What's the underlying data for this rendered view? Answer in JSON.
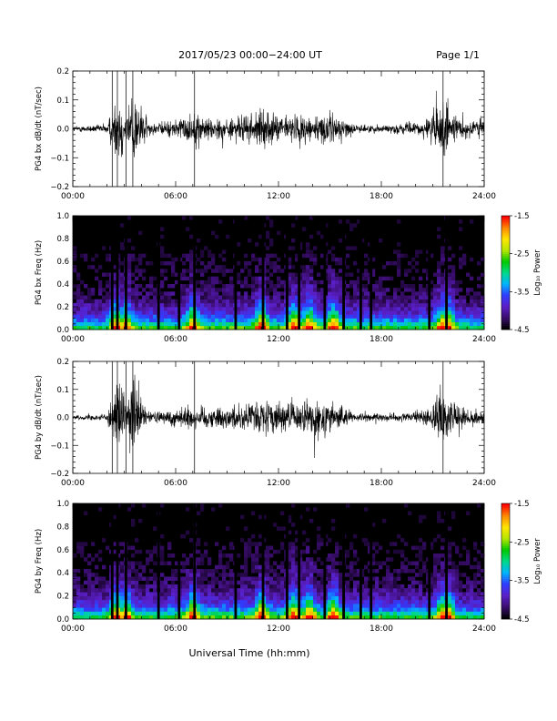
{
  "header": {
    "title": "2017/05/23  00:00−24:00 UT",
    "page": "Page 1/1"
  },
  "x_axis_title": "Universal Time (hh:mm)",
  "x_tick_labels": [
    "00:00",
    "06:00",
    "12:00",
    "18:00",
    "24:00"
  ],
  "colorbar": {
    "title": "Log₁₀ Power",
    "tick_labels": [
      "-1.5",
      "-2.5",
      "-3.5",
      "-4.5"
    ],
    "tick_values": [
      -1.5,
      -2.5,
      -3.5,
      -4.5
    ],
    "range": [
      -4.5,
      -1.5
    ],
    "colors": [
      "#000000",
      "#3a0d6e",
      "#5a1fc8",
      "#2f3cff",
      "#00b4ff",
      "#00d98a",
      "#00c800",
      "#b4e600",
      "#ffe600",
      "#ff8a00",
      "#ff0000"
    ]
  },
  "chart_data": [
    {
      "type": "line",
      "panel": "bx-waveform",
      "ylabel": "PG4 bx dB/dt (nT/sec)",
      "xlim": [
        0,
        24
      ],
      "ylim": [
        -0.2,
        0.2
      ],
      "y_tick_labels": [
        "0.2",
        "0.1",
        "0.0",
        "−0.1",
        "−0.2"
      ],
      "y_tick_values": [
        0.2,
        0.1,
        0.0,
        -0.1,
        -0.2
      ],
      "amplitude_envelope": {
        "x": [
          0,
          1.5,
          2.0,
          2.4,
          2.7,
          3.1,
          3.5,
          4.5,
          5.0,
          6.0,
          7.0,
          8.0,
          9.0,
          10.0,
          11.0,
          12.0,
          13.0,
          14.0,
          14.5,
          15.0,
          15.8,
          16.5,
          17.0,
          18.0,
          19.0,
          19.8,
          20.5,
          21.3,
          21.6,
          22.0,
          22.5,
          23.0,
          24.0
        ],
        "y": [
          0.015,
          0.02,
          0.03,
          0.12,
          0.2,
          0.08,
          0.2,
          0.03,
          0.03,
          0.05,
          0.08,
          0.06,
          0.05,
          0.07,
          0.09,
          0.07,
          0.07,
          0.08,
          0.06,
          0.09,
          0.05,
          0.02,
          0.02,
          0.02,
          0.025,
          0.03,
          0.04,
          0.12,
          0.2,
          0.07,
          0.05,
          0.06,
          0.05
        ]
      }
    },
    {
      "type": "heatmap",
      "panel": "bx-spectrogram",
      "ylabel": "PG4 bx Freq (Hz)",
      "xlim": [
        0,
        24
      ],
      "ylim": [
        0,
        1.0
      ],
      "y_tick_labels": [
        "1.0",
        "0.8",
        "0.6",
        "0.4",
        "0.2",
        "0.0"
      ],
      "y_tick_values": [
        1.0,
        0.8,
        0.6,
        0.4,
        0.2,
        0.0
      ],
      "gap_times_hr": [
        2.3,
        2.6,
        3.1,
        5.0,
        6.2,
        7.1,
        9.5,
        11.1,
        12.5,
        13.2,
        14.7,
        15.8,
        16.8,
        17.4,
        20.8,
        21.8
      ],
      "power_bursts_hr": [
        2.55,
        3.1,
        7.0,
        11.0,
        12.9,
        13.8,
        15.2,
        21.55,
        21.9
      ]
    },
    {
      "type": "line",
      "panel": "by-waveform",
      "ylabel": "PG4 by dB/dt (nT/sec)",
      "xlim": [
        0,
        24
      ],
      "ylim": [
        -0.2,
        0.2
      ],
      "y_tick_labels": [
        "0.2",
        "0.1",
        "0.0",
        "−0.1",
        "−0.2"
      ],
      "y_tick_values": [
        0.2,
        0.1,
        0.0,
        -0.1,
        -0.2
      ],
      "amplitude_envelope": {
        "x": [
          0,
          1.5,
          2.0,
          2.4,
          2.7,
          3.1,
          3.5,
          4.5,
          5.0,
          6.0,
          7.0,
          8.0,
          9.0,
          10.0,
          11.0,
          12.0,
          13.0,
          14.0,
          14.5,
          15.0,
          15.8,
          16.5,
          17.0,
          18.0,
          19.0,
          19.8,
          20.5,
          21.3,
          21.6,
          22.0,
          22.5,
          23.0,
          24.0
        ],
        "y": [
          0.01,
          0.015,
          0.025,
          0.11,
          0.2,
          0.07,
          0.2,
          0.025,
          0.03,
          0.05,
          0.07,
          0.05,
          0.06,
          0.07,
          0.09,
          0.08,
          0.07,
          0.1,
          0.08,
          0.1,
          0.05,
          0.02,
          0.02,
          0.02,
          0.02,
          0.025,
          0.04,
          0.1,
          0.18,
          0.1,
          0.05,
          0.05,
          0.04
        ]
      }
    },
    {
      "type": "heatmap",
      "panel": "by-spectrogram",
      "ylabel": "PG4 by Freq (Hz)",
      "xlim": [
        0,
        24
      ],
      "ylim": [
        0,
        1.0
      ],
      "y_tick_labels": [
        "1.0",
        "0.8",
        "0.6",
        "0.4",
        "0.2",
        "0.0"
      ],
      "y_tick_values": [
        1.0,
        0.8,
        0.6,
        0.4,
        0.2,
        0.0
      ],
      "gap_times_hr": [
        2.3,
        2.6,
        3.1,
        5.0,
        6.2,
        7.1,
        9.5,
        11.1,
        12.5,
        13.2,
        14.7,
        15.8,
        16.8,
        17.4,
        20.8,
        21.8
      ],
      "power_bursts_hr": [
        2.55,
        3.1,
        7.0,
        11.0,
        12.9,
        13.8,
        15.2,
        21.55,
        21.9
      ]
    }
  ]
}
